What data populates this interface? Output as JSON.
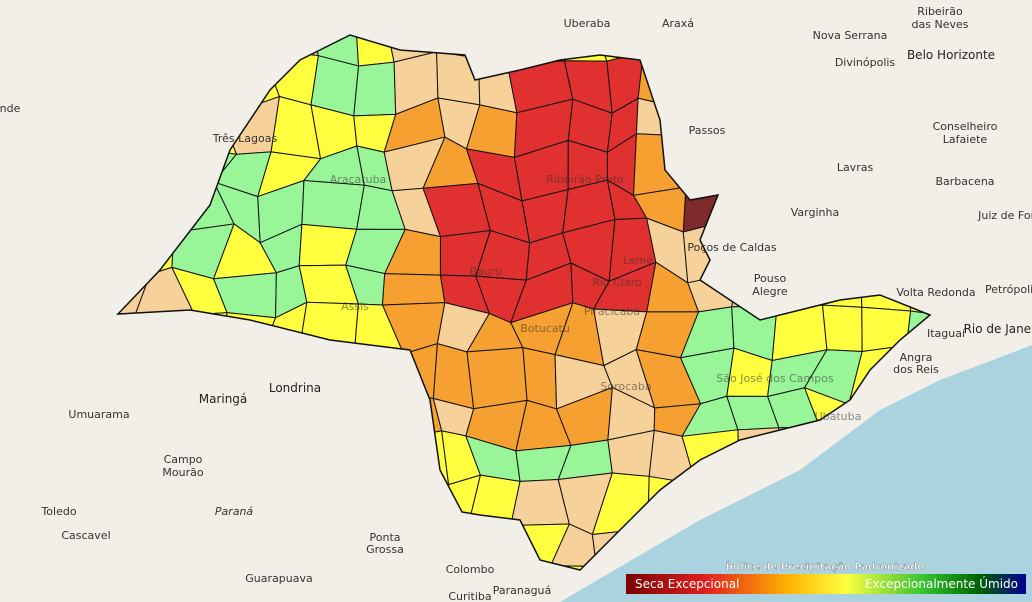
{
  "places": [
    "Uberaba",
    "Araxá",
    "Ribeirão",
    "das Neves",
    "Nova Serrana",
    "Divinópolis",
    "Belo Horizonte",
    "Passos",
    "Conselheiro",
    "Lafaiete",
    "Lavras",
    "Barbacena",
    "Varginha",
    "Juiz de Fora",
    "Poços de Caldas",
    "Pouso",
    "Alegre",
    "Volta Redonda",
    "Petrópolis",
    "Rio de Janeiro",
    "Itaguaí",
    "Angra",
    "dos Reis",
    "Três Lagoas",
    "Maringá",
    "Londrina",
    "Umuarama",
    "Campo",
    "Mourão",
    "Toledo",
    "Cascavel",
    "Paraná",
    "Ponta",
    "Grossa",
    "Guarapuava",
    "Colombo",
    "Curitiba",
    "Paranaguá",
    "nde",
    "Araçatuba",
    "Ribeirão Preto",
    "Bauru",
    "Rio Claro",
    "Piracicaba",
    "Sorocaba",
    "São José dos Campos",
    "Ubatuba",
    "Botucatu",
    "Assis",
    "Leme"
  ],
  "legend": {
    "title": "Índice de Precipitação Padronizado",
    "low": "Seca Excepcional",
    "high": "Excepcionalmente Úmido"
  }
}
